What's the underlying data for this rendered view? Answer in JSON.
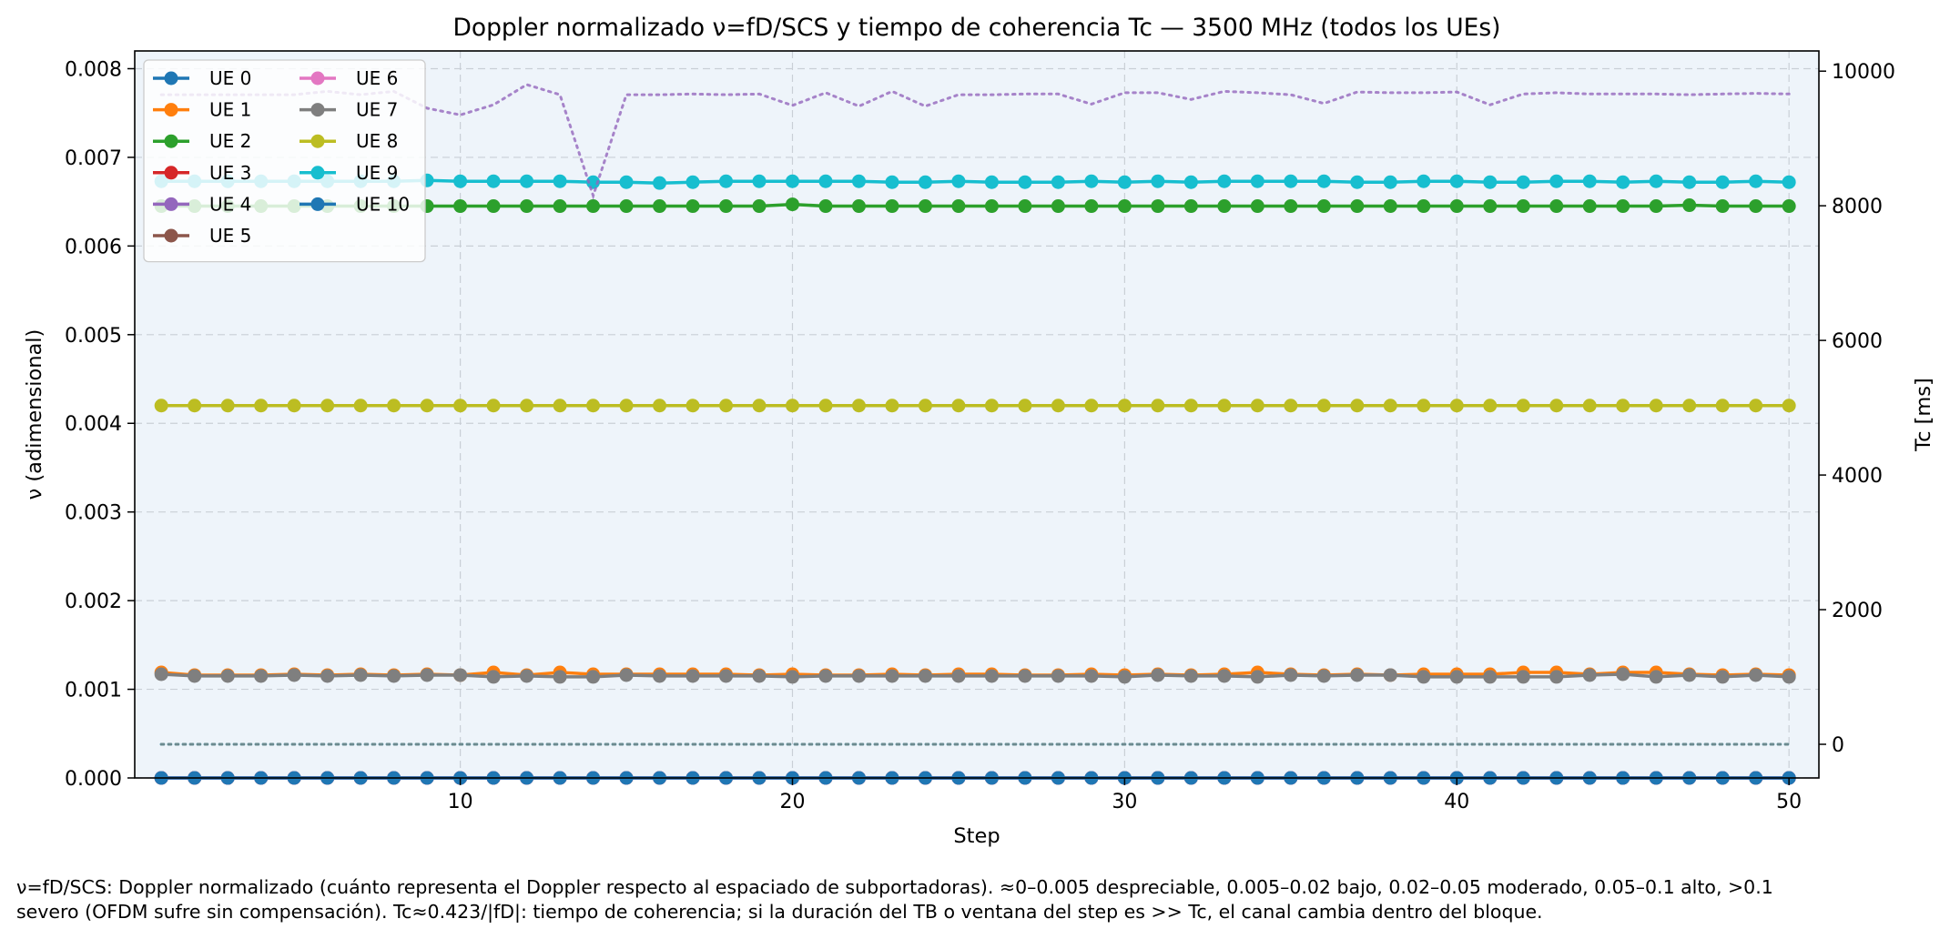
{
  "chart_data": {
    "type": "line",
    "title": "Doppler normalizado ν=fD/SCS y tiempo de coherencia Tc — 3500 MHz (todos los UEs)",
    "xlabel": "Step",
    "ylabel": "ν (adimensional)",
    "y2label": "Tc [ms]",
    "xlim": [
      0.2,
      50.9
    ],
    "ylim": [
      0,
      0.0082
    ],
    "y2lim": [
      -500,
      10300
    ],
    "xticks": [
      10,
      20,
      30,
      40,
      50
    ],
    "yticks": [
      0.0,
      0.001,
      0.002,
      0.003,
      0.004,
      0.005,
      0.006,
      0.007,
      0.008
    ],
    "y2ticks": [
      0,
      2000,
      4000,
      6000,
      8000,
      10000
    ],
    "grid": true,
    "legend_position": "top-left",
    "legend_columns": 2,
    "x": [
      1,
      2,
      3,
      4,
      5,
      6,
      7,
      8,
      9,
      10,
      11,
      12,
      13,
      14,
      15,
      16,
      17,
      18,
      19,
      20,
      21,
      22,
      23,
      24,
      25,
      26,
      27,
      28,
      29,
      30,
      31,
      32,
      33,
      34,
      35,
      36,
      37,
      38,
      39,
      40,
      41,
      42,
      43,
      44,
      45,
      46,
      47,
      48,
      49,
      50
    ],
    "series": [
      {
        "name": "UE 0",
        "axis": "left",
        "style": "solid-marker",
        "color": "#1f77b4",
        "values": [
          0,
          0,
          0,
          0,
          0,
          0,
          0,
          0,
          0,
          0,
          0,
          0,
          0,
          0,
          0,
          0,
          0,
          0,
          0,
          0,
          0,
          0,
          0,
          0,
          0,
          0,
          0,
          0,
          0,
          0,
          0,
          0,
          0,
          0,
          0,
          0,
          0,
          0,
          0,
          0,
          0,
          0,
          0,
          0,
          0,
          0,
          0,
          0,
          0,
          0
        ]
      },
      {
        "name": "UE 1",
        "axis": "left",
        "style": "solid-marker",
        "color": "#ff7f0e",
        "values": [
          0.00119,
          0.00116,
          0.00116,
          0.00116,
          0.00117,
          0.00116,
          0.00117,
          0.00116,
          0.00117,
          0.00116,
          0.00119,
          0.00116,
          0.00119,
          0.00117,
          0.00117,
          0.00117,
          0.00117,
          0.00117,
          0.00116,
          0.00117,
          0.00116,
          0.00116,
          0.00117,
          0.00116,
          0.00117,
          0.00117,
          0.00116,
          0.00116,
          0.00117,
          0.00116,
          0.00117,
          0.00116,
          0.00117,
          0.00119,
          0.00117,
          0.00116,
          0.00117,
          0.00116,
          0.00117,
          0.00117,
          0.00117,
          0.00119,
          0.00119,
          0.00117,
          0.00119,
          0.00119,
          0.00117,
          0.00116,
          0.00117,
          0.00116
        ]
      },
      {
        "name": "UE 2",
        "axis": "left",
        "style": "solid-marker",
        "color": "#2ca02c",
        "values": [
          0.00645,
          0.00645,
          0.00645,
          0.00645,
          0.00645,
          0.00645,
          0.00645,
          0.00645,
          0.00645,
          0.00645,
          0.00645,
          0.00645,
          0.00645,
          0.00645,
          0.00645,
          0.00645,
          0.00645,
          0.00645,
          0.00645,
          0.00647,
          0.00645,
          0.00645,
          0.00645,
          0.00645,
          0.00645,
          0.00645,
          0.00645,
          0.00645,
          0.00645,
          0.00645,
          0.00645,
          0.00645,
          0.00645,
          0.00645,
          0.00645,
          0.00645,
          0.00645,
          0.00645,
          0.00645,
          0.00645,
          0.00645,
          0.00645,
          0.00645,
          0.00645,
          0.00645,
          0.00645,
          0.00646,
          0.00645,
          0.00645,
          0.00645
        ]
      },
      {
        "name": "UE 3",
        "axis": "left",
        "style": "solid-marker",
        "color": "#d62728",
        "values": [
          0,
          0,
          0,
          0,
          0,
          0,
          0,
          0,
          0,
          0,
          0,
          0,
          0,
          0,
          0,
          0,
          0,
          0,
          0,
          0,
          0,
          0,
          0,
          0,
          0,
          0,
          0,
          0,
          0,
          0,
          0,
          0,
          0,
          0,
          0,
          0,
          0,
          0,
          0,
          0,
          0,
          0,
          0,
          0,
          0,
          0,
          0,
          0,
          0,
          0
        ]
      },
      {
        "name": "UE 4",
        "axis": "left",
        "style": "solid-marker",
        "color": "#9467bd",
        "values": [
          0,
          0,
          0,
          0,
          0,
          0,
          0,
          0,
          0,
          0,
          0,
          0,
          0,
          0,
          0,
          0,
          0,
          0,
          0,
          0,
          0,
          0,
          0,
          0,
          0,
          0,
          0,
          0,
          0,
          0,
          0,
          0,
          0,
          0,
          0,
          0,
          0,
          0,
          0,
          0,
          0,
          0,
          0,
          0,
          0,
          0,
          0,
          0,
          0,
          0
        ]
      },
      {
        "name": "UE 5",
        "axis": "left",
        "style": "solid-marker",
        "color": "#8c564b",
        "values": [
          0,
          0,
          0,
          0,
          0,
          0,
          0,
          0,
          0,
          0,
          0,
          0,
          0,
          0,
          0,
          0,
          0,
          0,
          0,
          0,
          0,
          0,
          0,
          0,
          0,
          0,
          0,
          0,
          0,
          0,
          0,
          0,
          0,
          0,
          0,
          0,
          0,
          0,
          0,
          0,
          0,
          0,
          0,
          0,
          0,
          0,
          0,
          0,
          0,
          0
        ]
      },
      {
        "name": "UE 6",
        "axis": "left",
        "style": "solid-marker",
        "color": "#e377c2",
        "values": [
          0,
          0,
          0,
          0,
          0,
          0,
          0,
          0,
          0,
          0,
          0,
          0,
          0,
          0,
          0,
          0,
          0,
          0,
          0,
          0,
          0,
          0,
          0,
          0,
          0,
          0,
          0,
          0,
          0,
          0,
          0,
          0,
          0,
          0,
          0,
          0,
          0,
          0,
          0,
          0,
          0,
          0,
          0,
          0,
          0,
          0,
          0,
          0,
          0,
          0
        ]
      },
      {
        "name": "UE 7",
        "axis": "left",
        "style": "solid-marker",
        "color": "#7f7f7f",
        "values": [
          0.00117,
          0.00115,
          0.00115,
          0.00115,
          0.00116,
          0.00115,
          0.00116,
          0.00115,
          0.00116,
          0.00116,
          0.00114,
          0.00115,
          0.00114,
          0.00114,
          0.00116,
          0.00115,
          0.00115,
          0.00115,
          0.00115,
          0.00114,
          0.00115,
          0.00115,
          0.00115,
          0.00115,
          0.00115,
          0.00115,
          0.00115,
          0.00115,
          0.00115,
          0.00114,
          0.00116,
          0.00115,
          0.00115,
          0.00114,
          0.00116,
          0.00115,
          0.00116,
          0.00116,
          0.00114,
          0.00114,
          0.00114,
          0.00114,
          0.00114,
          0.00116,
          0.00117,
          0.00114,
          0.00116,
          0.00114,
          0.00116,
          0.00114
        ]
      },
      {
        "name": "UE 8",
        "axis": "left",
        "style": "solid-marker",
        "color": "#bcbd22",
        "values": [
          0.0042,
          0.0042,
          0.0042,
          0.0042,
          0.0042,
          0.0042,
          0.0042,
          0.0042,
          0.0042,
          0.0042,
          0.0042,
          0.0042,
          0.0042,
          0.0042,
          0.0042,
          0.0042,
          0.0042,
          0.0042,
          0.0042,
          0.0042,
          0.0042,
          0.0042,
          0.0042,
          0.0042,
          0.0042,
          0.0042,
          0.0042,
          0.0042,
          0.0042,
          0.0042,
          0.0042,
          0.0042,
          0.0042,
          0.0042,
          0.0042,
          0.0042,
          0.0042,
          0.0042,
          0.0042,
          0.0042,
          0.0042,
          0.0042,
          0.0042,
          0.0042,
          0.0042,
          0.0042,
          0.0042,
          0.0042,
          0.0042,
          0.0042
        ]
      },
      {
        "name": "UE 9",
        "axis": "left",
        "style": "solid-marker",
        "color": "#17becf",
        "values": [
          0.00673,
          0.00673,
          0.00673,
          0.00673,
          0.00673,
          0.00673,
          0.00673,
          0.00673,
          0.00674,
          0.00673,
          0.00673,
          0.00673,
          0.00673,
          0.00672,
          0.00672,
          0.00671,
          0.00672,
          0.00673,
          0.00673,
          0.00673,
          0.00673,
          0.00673,
          0.00672,
          0.00672,
          0.00673,
          0.00672,
          0.00672,
          0.00672,
          0.00673,
          0.00672,
          0.00673,
          0.00672,
          0.00673,
          0.00673,
          0.00673,
          0.00673,
          0.00672,
          0.00672,
          0.00673,
          0.00673,
          0.00672,
          0.00672,
          0.00673,
          0.00673,
          0.00672,
          0.00673,
          0.00672,
          0.00672,
          0.00673,
          0.00672
        ]
      },
      {
        "name": "UE 10",
        "axis": "left",
        "style": "solid-marker",
        "color": "#1f77b4",
        "values": [
          0,
          0,
          0,
          0,
          0,
          0,
          0,
          0,
          0,
          0,
          0,
          0,
          0,
          0,
          0,
          0,
          0,
          0,
          0,
          0,
          0,
          0,
          0,
          0,
          0,
          0,
          0,
          0,
          0,
          0,
          0,
          0,
          0,
          0,
          0,
          0,
          0,
          0,
          0,
          0,
          0,
          0,
          0,
          0,
          0,
          0,
          0,
          0,
          0,
          0
        ]
      },
      {
        "axis": "right",
        "style": "dotted",
        "color": "#9467bd",
        "values": [
          9650,
          9650,
          9650,
          9650,
          9650,
          9700,
          9650,
          9700,
          9450,
          9350,
          9500,
          9800,
          9650,
          8150,
          9650,
          9650,
          9660,
          9650,
          9660,
          9490,
          9680,
          9480,
          9700,
          9480,
          9650,
          9650,
          9660,
          9660,
          9510,
          9680,
          9680,
          9580,
          9700,
          9680,
          9650,
          9520,
          9690,
          9680,
          9680,
          9690,
          9500,
          9660,
          9680,
          9660,
          9660,
          9660,
          9650,
          9660,
          9670,
          9660
        ]
      },
      {
        "axis": "right",
        "style": "dotted",
        "color": "#1f77b4",
        "values": [
          0,
          0,
          0,
          0,
          0,
          0,
          0,
          0,
          0,
          0,
          0,
          0,
          0,
          0,
          0,
          0,
          0,
          0,
          0,
          0,
          0,
          0,
          0,
          0,
          0,
          0,
          0,
          0,
          0,
          0,
          0,
          0,
          0,
          0,
          0,
          0,
          0,
          0,
          0,
          0,
          0,
          0,
          0,
          0,
          0,
          0,
          0,
          0,
          0,
          0
        ]
      },
      {
        "axis": "right",
        "style": "dotted",
        "color": "#17becf",
        "values": [
          0,
          0,
          0,
          0,
          0,
          0,
          0,
          0,
          0,
          0,
          0,
          0,
          0,
          0,
          0,
          0,
          0,
          0,
          0,
          0,
          0,
          0,
          0,
          0,
          0,
          0,
          0,
          0,
          0,
          0,
          0,
          0,
          0,
          0,
          0,
          0,
          0,
          0,
          0,
          0,
          0,
          0,
          0,
          0,
          0,
          0,
          0,
          0,
          0,
          0
        ]
      },
      {
        "axis": "right",
        "style": "dotted",
        "color": "#7f7f7f",
        "values": [
          0,
          0,
          0,
          0,
          0,
          0,
          0,
          0,
          0,
          0,
          0,
          0,
          0,
          0,
          0,
          0,
          0,
          0,
          0,
          0,
          0,
          0,
          0,
          0,
          0,
          0,
          0,
          0,
          0,
          0,
          0,
          0,
          0,
          0,
          0,
          0,
          0,
          0,
          0,
          0,
          0,
          0,
          0,
          0,
          0,
          0,
          0,
          0,
          0,
          0
        ]
      }
    ]
  },
  "colors": {
    "plot_background": "#eef4fa",
    "grid": "#c9cfd6"
  },
  "footnote": {
    "line1": "ν=fD/SCS: Doppler normalizado (cuánto representa el Doppler respecto al espaciado de subportadoras). ≈0–0.005 despreciable, 0.005–0.02 bajo, 0.02–0.05 moderado, 0.05–0.1 alto, >0.1",
    "line2": "severo (OFDM sufre sin compensación). Tc≈0.423/|fD|: tiempo de coherencia; si la duración del TB o ventana del step es >> Tc, el canal cambia dentro del bloque."
  }
}
